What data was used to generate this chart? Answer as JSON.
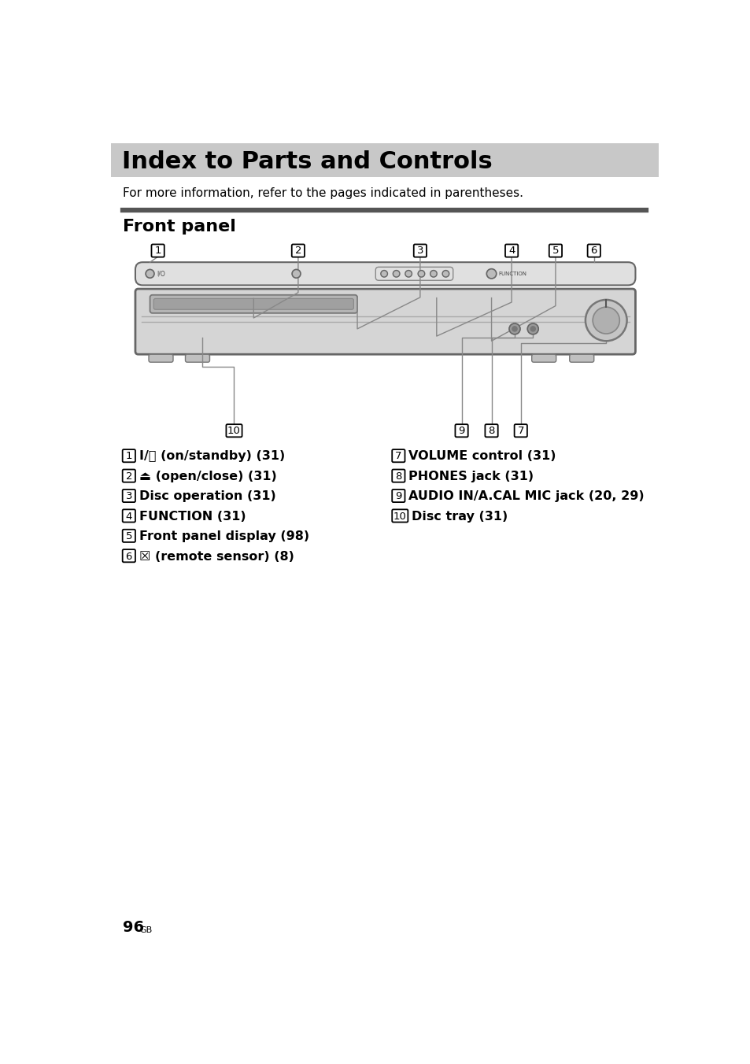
{
  "title": "Index to Parts and Controls",
  "subtitle": "For more information, refer to the pages indicated in parentheses.",
  "section_title": "Front panel",
  "title_bg_color": "#c8c8c8",
  "section_bar_color": "#555555",
  "page_bg": "#ffffff",
  "page_number": "96",
  "page_suffix": "GB",
  "left_items": [
    {
      "num": "1",
      "text": "I/⏻ (on/standby) (31)"
    },
    {
      "num": "2",
      "text": "⏏ (open/close) (31)"
    },
    {
      "num": "3",
      "text": "Disc operation (31)"
    },
    {
      "num": "4",
      "text": "FUNCTION (31)"
    },
    {
      "num": "5",
      "text": "Front panel display (98)"
    },
    {
      "num": "6",
      "text": "☒ (remote sensor) (8)"
    }
  ],
  "right_items": [
    {
      "num": "7",
      "text": "VOLUME control (31)"
    },
    {
      "num": "8",
      "text": "PHONES jack (31)"
    },
    {
      "num": "9",
      "text": "AUDIO IN/A.CAL MIC jack (20, 29)"
    },
    {
      "num": "10",
      "text": "Disc tray (31)"
    }
  ]
}
